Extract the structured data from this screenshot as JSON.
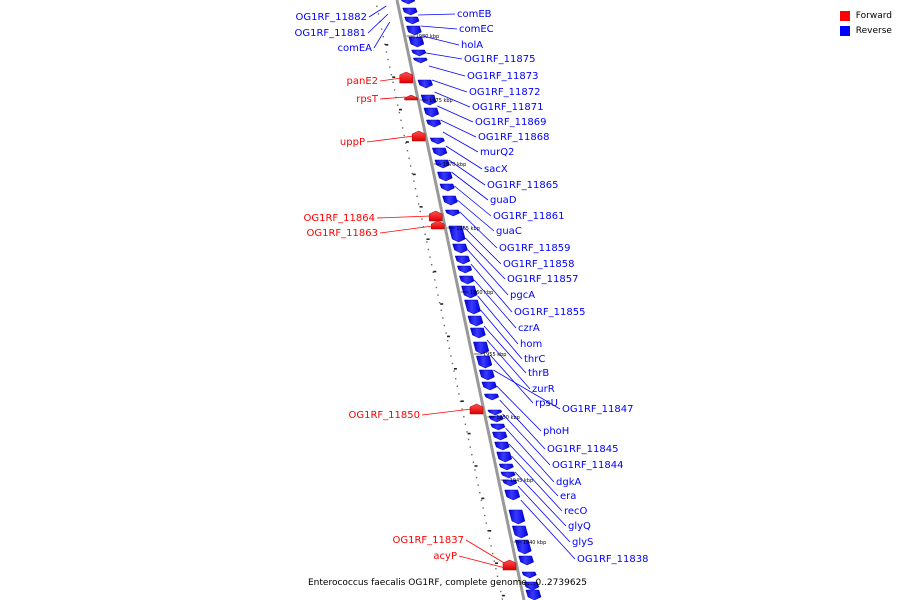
{
  "caption": "Enterococcus faecalis OG1RF, complete genome...0..2739625",
  "legend": {
    "forward": {
      "label": "Forward",
      "color": "#ff0000"
    },
    "reverse": {
      "label": "Reverse",
      "color": "#0000ff"
    }
  },
  "kbp_ticks": [
    "1980 kbp",
    "1975 kbp",
    "1970 kbp",
    "1965 kbp",
    "1960 kbp",
    "1955 kbp",
    "1950 kbp",
    "1945 kbp",
    "1940 kbp"
  ],
  "forward_genes": [
    "OG1RF_11882",
    "OG1RF_11881",
    "comEA",
    "panE2",
    "rpsT",
    "uppP",
    "OG1RF_11864",
    "OG1RF_11863",
    "OG1RF_11850",
    "OG1RF_11837",
    "acyP"
  ],
  "reverse_genes": [
    "comEB",
    "comEC",
    "holA",
    "OG1RF_11875",
    "OG1RF_11873",
    "OG1RF_11872",
    "OG1RF_11871",
    "OG1RF_11869",
    "OG1RF_11868",
    "murQ2",
    "sacX",
    "OG1RF_11865",
    "guaD",
    "OG1RF_11861",
    "guaC",
    "OG1RF_11859",
    "OG1RF_11858",
    "OG1RF_11857",
    "pgcA",
    "OG1RF_11855",
    "czrA",
    "hom",
    "thrC",
    "thrB",
    "zurR",
    "rpsU",
    "OG1RF_11847",
    "phoH",
    "OG1RF_11845",
    "OG1RF_11844",
    "dgkA",
    "era",
    "recO",
    "glyQ",
    "glyS",
    "OG1RF_11838"
  ]
}
